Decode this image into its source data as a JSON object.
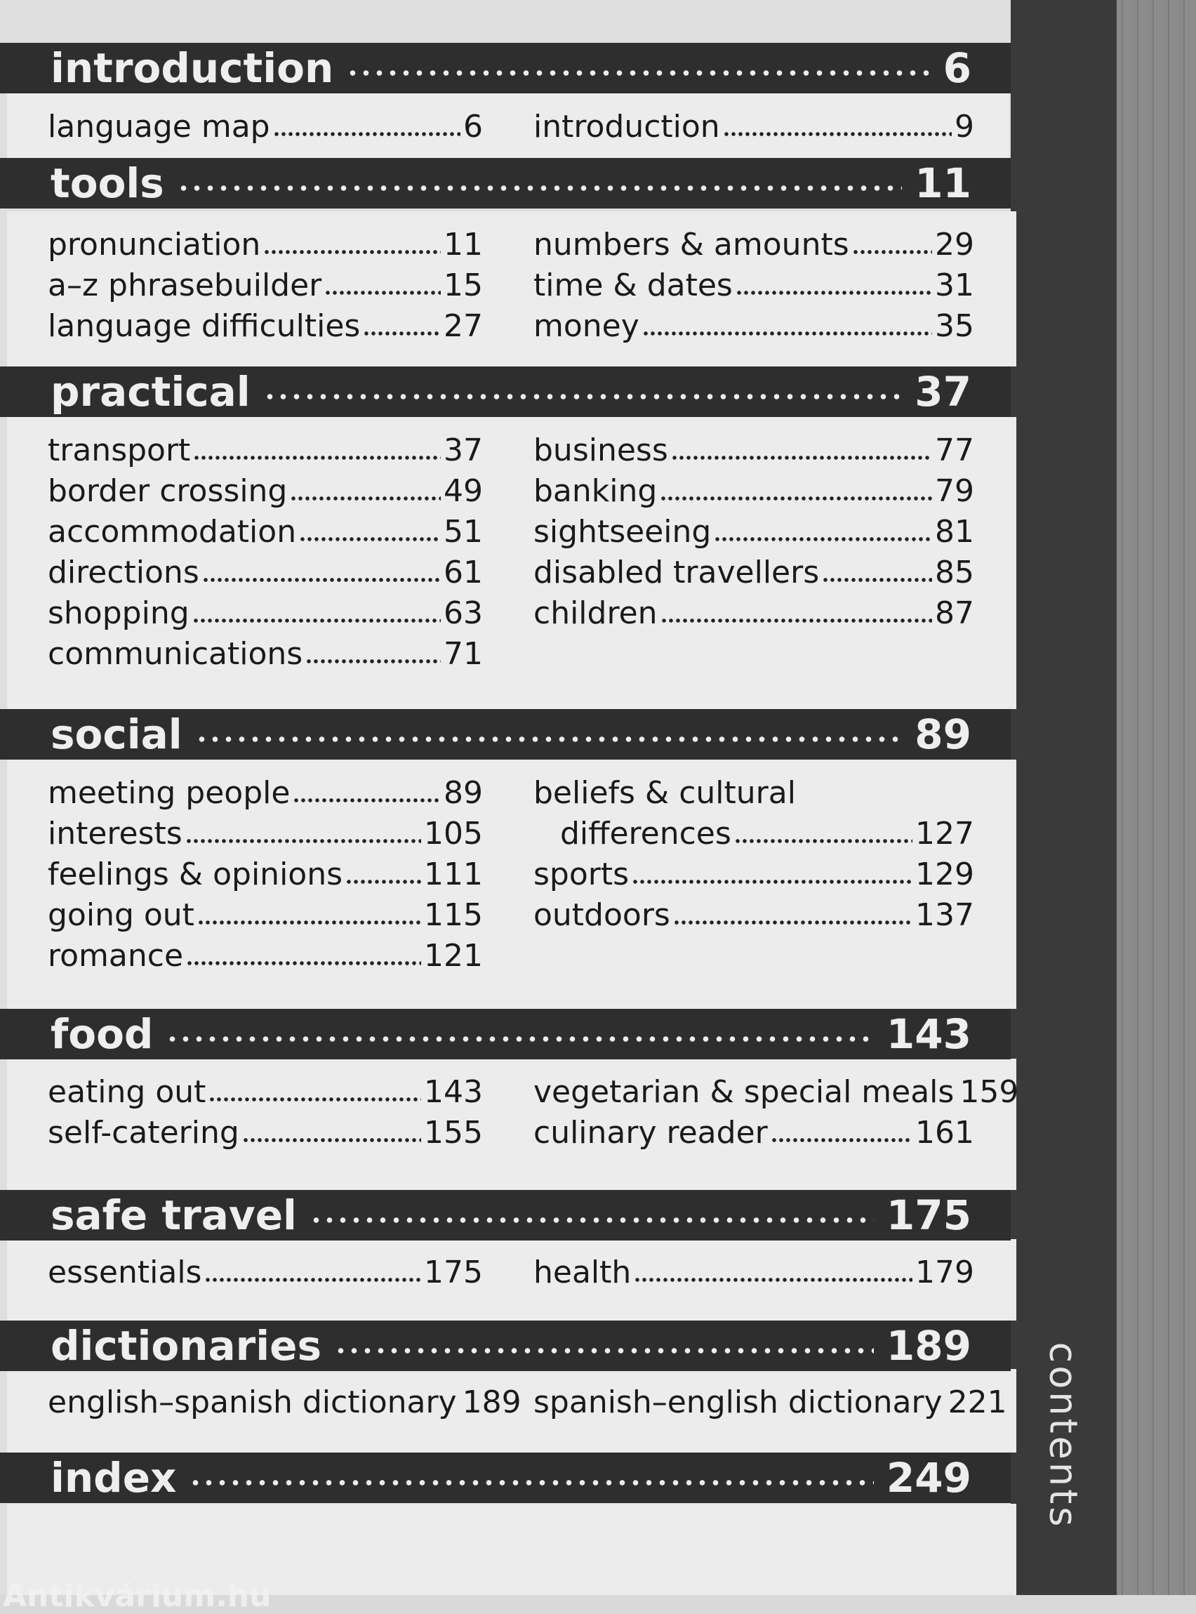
{
  "side_tab": "contents",
  "watermark": "Antikvárium.hu",
  "colors": {
    "header_bg": "#2e2e2e",
    "body_bg": "#ececec",
    "band": "#3a3a3a"
  },
  "sections": [
    {
      "title": "introduction",
      "page": "6",
      "left": [
        {
          "label": "language map",
          "page": "6"
        }
      ],
      "right": [
        {
          "label": "introduction",
          "page": "9"
        }
      ]
    },
    {
      "title": "tools",
      "page": "11",
      "left": [
        {
          "label": "pronunciation",
          "page": "11"
        },
        {
          "label": "a–z phrasebuilder",
          "page": "15"
        },
        {
          "label": "language difficulties",
          "page": "27"
        }
      ],
      "right": [
        {
          "label": "numbers & amounts",
          "page": "29"
        },
        {
          "label": "time & dates",
          "page": "31"
        },
        {
          "label": "money",
          "page": "35"
        }
      ]
    },
    {
      "title": "practical",
      "page": "37",
      "left": [
        {
          "label": "transport",
          "page": "37"
        },
        {
          "label": "border crossing",
          "page": "49"
        },
        {
          "label": "accommodation",
          "page": "51"
        },
        {
          "label": "directions",
          "page": "61"
        },
        {
          "label": "shopping",
          "page": "63"
        },
        {
          "label": "communications",
          "page": "71"
        }
      ],
      "right": [
        {
          "label": "business",
          "page": "77"
        },
        {
          "label": "banking",
          "page": "79"
        },
        {
          "label": "sightseeing",
          "page": "81"
        },
        {
          "label": "disabled travellers",
          "page": "85"
        },
        {
          "label": "children",
          "page": "87"
        }
      ]
    },
    {
      "title": "social",
      "page": "89",
      "left": [
        {
          "label": "meeting people",
          "page": "89"
        },
        {
          "label": "interests",
          "page": "105"
        },
        {
          "label": "feelings & opinions",
          "page": "111"
        },
        {
          "label": "going out",
          "page": "115"
        },
        {
          "label": "romance",
          "page": "121"
        }
      ],
      "right": [
        {
          "label": "beliefs & cultural",
          "page": ""
        },
        {
          "label": "differences",
          "page": "127",
          "indent": true
        },
        {
          "label": "sports",
          "page": "129"
        },
        {
          "label": "outdoors",
          "page": "137"
        }
      ]
    },
    {
      "title": "food",
      "page": "143",
      "left": [
        {
          "label": "eating out",
          "page": "143"
        },
        {
          "label": "self-catering",
          "page": "155"
        }
      ],
      "right": [
        {
          "label": "vegetarian & special meals",
          "page": "159"
        },
        {
          "label": "culinary reader",
          "page": "161"
        }
      ]
    },
    {
      "title": "safe travel",
      "page": "175",
      "left": [
        {
          "label": "essentials",
          "page": "175"
        }
      ],
      "right": [
        {
          "label": "health",
          "page": "179"
        }
      ]
    },
    {
      "title": "dictionaries",
      "page": "189",
      "left": [
        {
          "label": "english–spanish dictionary",
          "page": "189"
        }
      ],
      "right": [
        {
          "label": "spanish–english dictionary",
          "page": "221"
        }
      ]
    },
    {
      "title": "index",
      "page": "249",
      "left": [],
      "right": []
    }
  ]
}
